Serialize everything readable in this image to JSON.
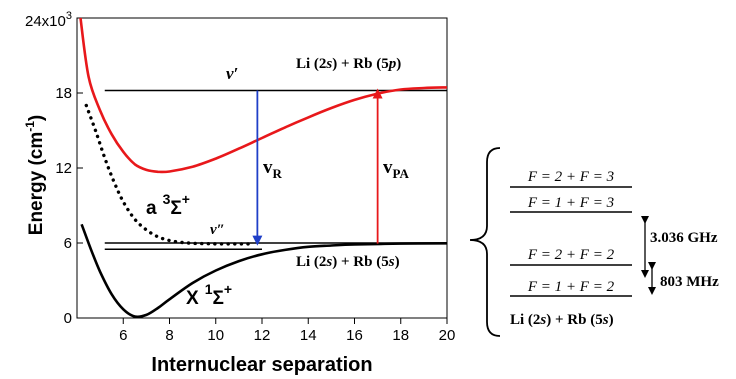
{
  "chart_data": {
    "type": "line",
    "xlabel": "Internuclear separation",
    "ylabel": "Energy (cm",
    "ylabel_sup": "-1",
    "ylabel_close": ")",
    "xlim": [
      4,
      20
    ],
    "ylim": [
      0,
      24000
    ],
    "x_ticks": [
      6,
      8,
      10,
      12,
      14,
      16,
      18,
      20
    ],
    "y_ticks": [
      {
        "value": 0,
        "label": "0"
      },
      {
        "value": 6000,
        "label": "6"
      },
      {
        "value": 12000,
        "label": "12"
      },
      {
        "value": 18000,
        "label": "18"
      },
      {
        "value": 24000,
        "label": "24x10",
        "sup": "3"
      }
    ],
    "series": [
      {
        "color": "#e8181b",
        "style": "solid",
        "points": [
          [
            4.15,
            24000
          ],
          [
            4.5,
            19300
          ],
          [
            5,
            16600
          ],
          [
            5.5,
            14700
          ],
          [
            6,
            13300
          ],
          [
            6.5,
            12300
          ],
          [
            7,
            11850
          ],
          [
            7.5,
            11700
          ],
          [
            8,
            11720
          ],
          [
            9,
            12100
          ],
          [
            10,
            12750
          ],
          [
            11,
            13550
          ],
          [
            12,
            14400
          ],
          [
            13,
            15250
          ],
          [
            14,
            16050
          ],
          [
            15,
            16800
          ],
          [
            16,
            17450
          ],
          [
            17,
            17950
          ],
          [
            18,
            18280
          ],
          [
            19,
            18400
          ],
          [
            20,
            18450
          ]
        ]
      },
      {
        "color": "#000000",
        "style": "dotted",
        "points": [
          [
            4.4,
            17000
          ],
          [
            4.8,
            15000
          ],
          [
            5.2,
            12800
          ],
          [
            5.6,
            10900
          ],
          [
            6,
            9300
          ],
          [
            6.5,
            7900
          ],
          [
            7,
            7050
          ],
          [
            7.5,
            6500
          ],
          [
            8,
            6200
          ],
          [
            8.5,
            6050
          ],
          [
            9,
            5980
          ],
          [
            9.5,
            5950
          ],
          [
            10,
            5930
          ],
          [
            11,
            5930
          ],
          [
            11.6,
            5930
          ]
        ]
      },
      {
        "color": "#000000",
        "style": "solid",
        "points": [
          [
            4.2,
            7500
          ],
          [
            4.6,
            5500
          ],
          [
            5,
            3700
          ],
          [
            5.5,
            1900
          ],
          [
            6,
            700
          ],
          [
            6.5,
            120
          ],
          [
            7,
            250
          ],
          [
            7.5,
            800
          ],
          [
            8,
            1500
          ],
          [
            9,
            2800
          ],
          [
            10,
            3800
          ],
          [
            11,
            4550
          ],
          [
            12,
            5100
          ],
          [
            13,
            5450
          ],
          [
            14,
            5700
          ],
          [
            15,
            5800
          ],
          [
            16,
            5880
          ],
          [
            18,
            5950
          ],
          [
            20,
            5980
          ]
        ]
      }
    ],
    "levels": [
      {
        "y": 18200,
        "x1": 5.2,
        "x2": 20
      },
      {
        "y": 6000,
        "x1": 5.2,
        "x2": 20
      },
      {
        "y": 5500,
        "x1": 5.2,
        "x2": 12
      }
    ],
    "arrows": [
      {
        "name": "vr",
        "x": 11.8,
        "y_from": 18200,
        "y_to": 5950,
        "color": "#1f3fc8"
      },
      {
        "name": "vpa",
        "x": 17.0,
        "y_from": 5950,
        "y_to": 18200,
        "color": "#e8181b"
      }
    ],
    "annotations": {
      "vprime": "v′",
      "vdoubleprime": "v″",
      "asymptote_upper": {
        "pre": "Li (2",
        "s1": "s",
        "mid": ") + Rb (5",
        "s2": "p",
        "post": ")"
      },
      "asymptote_lower": {
        "pre": "Li (2",
        "s1": "s",
        "mid": ") + Rb (5",
        "s2": "s",
        "post": ")"
      },
      "vr": {
        "main": "v",
        "sub": "R"
      },
      "vpa": {
        "main": "v",
        "sub": "PA"
      },
      "triplet": {
        "letter": "a",
        "mult": "3",
        "sigma": "Σ",
        "sign": "+"
      },
      "singlet": {
        "letter": "X",
        "mult": "1",
        "sigma": "Σ",
        "sign": "+"
      }
    }
  },
  "hyperfine": {
    "levels": [
      {
        "label": "F = 2 + F = 3"
      },
      {
        "label": "F = 1 + F = 3"
      },
      {
        "label": "F = 2 + F = 2"
      },
      {
        "label": "F = 1 + F = 2"
      }
    ],
    "spacings": [
      {
        "label": "3.036 GHz"
      },
      {
        "label": "803 MHz"
      }
    ],
    "asymptote": {
      "pre": "Li (2",
      "s1": "s",
      "mid": ") + Rb (5",
      "s2": "s",
      "post": ")"
    }
  }
}
